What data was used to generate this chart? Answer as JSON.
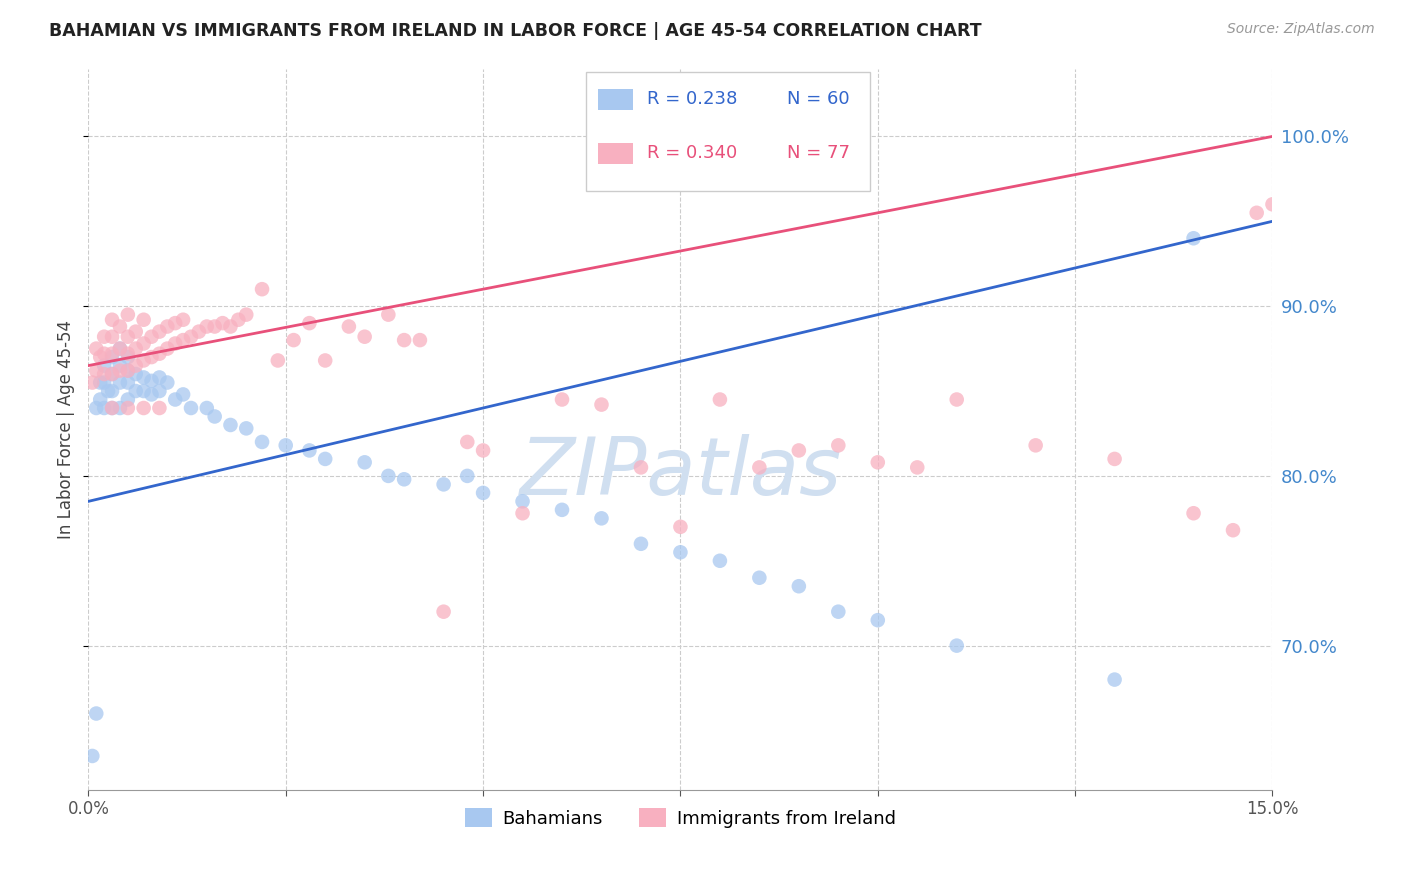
{
  "title": "BAHAMIAN VS IMMIGRANTS FROM IRELAND IN LABOR FORCE | AGE 45-54 CORRELATION CHART",
  "source": "Source: ZipAtlas.com",
  "ylabel": "In Labor Force | Age 45-54",
  "ytick_values": [
    0.7,
    0.8,
    0.9,
    1.0
  ],
  "xmin": 0.0,
  "xmax": 0.15,
  "ymin": 0.615,
  "ymax": 1.04,
  "blue_color": "#a8c8f0",
  "pink_color": "#f8b0c0",
  "blue_line_color": "#3366cc",
  "pink_line_color": "#e8507a",
  "watermark_color": "#d0dff0",
  "legend_blue_R": "R = 0.238",
  "legend_blue_N": "N = 60",
  "legend_pink_R": "R = 0.340",
  "legend_pink_N": "N = 77",
  "blue_scatter_x": [
    0.0005,
    0.001,
    0.001,
    0.0015,
    0.0015,
    0.002,
    0.002,
    0.002,
    0.0025,
    0.003,
    0.003,
    0.003,
    0.003,
    0.004,
    0.004,
    0.004,
    0.004,
    0.005,
    0.005,
    0.005,
    0.005,
    0.006,
    0.006,
    0.007,
    0.007,
    0.008,
    0.008,
    0.009,
    0.009,
    0.01,
    0.011,
    0.012,
    0.013,
    0.015,
    0.016,
    0.018,
    0.02,
    0.022,
    0.025,
    0.028,
    0.03,
    0.035,
    0.038,
    0.04,
    0.045,
    0.048,
    0.05,
    0.055,
    0.06,
    0.065,
    0.07,
    0.075,
    0.08,
    0.085,
    0.09,
    0.095,
    0.1,
    0.11,
    0.13,
    0.14
  ],
  "blue_scatter_y": [
    0.635,
    0.66,
    0.84,
    0.845,
    0.855,
    0.84,
    0.855,
    0.865,
    0.85,
    0.84,
    0.85,
    0.86,
    0.87,
    0.84,
    0.855,
    0.865,
    0.875,
    0.845,
    0.855,
    0.862,
    0.87,
    0.85,
    0.86,
    0.85,
    0.858,
    0.848,
    0.856,
    0.85,
    0.858,
    0.855,
    0.845,
    0.848,
    0.84,
    0.84,
    0.835,
    0.83,
    0.828,
    0.82,
    0.818,
    0.815,
    0.81,
    0.808,
    0.8,
    0.798,
    0.795,
    0.8,
    0.79,
    0.785,
    0.78,
    0.775,
    0.76,
    0.755,
    0.75,
    0.74,
    0.735,
    0.72,
    0.715,
    0.7,
    0.68,
    0.94
  ],
  "pink_scatter_x": [
    0.0005,
    0.001,
    0.001,
    0.0015,
    0.002,
    0.002,
    0.002,
    0.003,
    0.003,
    0.003,
    0.003,
    0.004,
    0.004,
    0.004,
    0.005,
    0.005,
    0.005,
    0.005,
    0.006,
    0.006,
    0.006,
    0.007,
    0.007,
    0.007,
    0.008,
    0.008,
    0.009,
    0.009,
    0.01,
    0.01,
    0.011,
    0.011,
    0.012,
    0.012,
    0.013,
    0.014,
    0.015,
    0.016,
    0.017,
    0.018,
    0.019,
    0.02,
    0.022,
    0.024,
    0.026,
    0.028,
    0.03,
    0.033,
    0.035,
    0.038,
    0.04,
    0.042,
    0.045,
    0.048,
    0.05,
    0.055,
    0.06,
    0.065,
    0.07,
    0.075,
    0.08,
    0.085,
    0.09,
    0.095,
    0.1,
    0.105,
    0.11,
    0.12,
    0.13,
    0.14,
    0.145,
    0.148,
    0.15,
    0.003,
    0.005,
    0.007,
    0.009
  ],
  "pink_scatter_y": [
    0.855,
    0.862,
    0.875,
    0.87,
    0.86,
    0.872,
    0.882,
    0.86,
    0.872,
    0.882,
    0.892,
    0.862,
    0.875,
    0.888,
    0.862,
    0.872,
    0.882,
    0.895,
    0.865,
    0.875,
    0.885,
    0.868,
    0.878,
    0.892,
    0.87,
    0.882,
    0.872,
    0.885,
    0.875,
    0.888,
    0.878,
    0.89,
    0.88,
    0.892,
    0.882,
    0.885,
    0.888,
    0.888,
    0.89,
    0.888,
    0.892,
    0.895,
    0.91,
    0.868,
    0.88,
    0.89,
    0.868,
    0.888,
    0.882,
    0.895,
    0.88,
    0.88,
    0.72,
    0.82,
    0.815,
    0.778,
    0.845,
    0.842,
    0.805,
    0.77,
    0.845,
    0.805,
    0.815,
    0.818,
    0.808,
    0.805,
    0.845,
    0.818,
    0.81,
    0.778,
    0.768,
    0.955,
    0.96,
    0.84,
    0.84,
    0.84,
    0.84
  ]
}
